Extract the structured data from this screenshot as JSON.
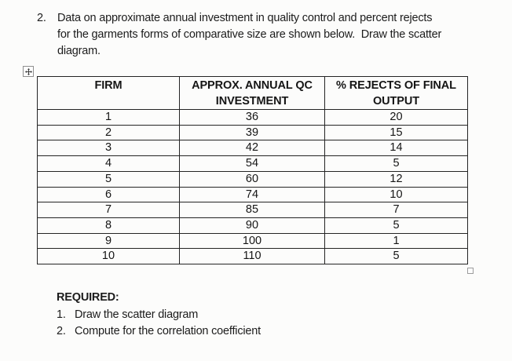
{
  "problem": {
    "number": "2.",
    "lines": [
      "Data on approximate annual investment in quality control and percent rejects",
      "for the garments forms of comparative size are shown below.  Draw the scatter",
      "diagram."
    ]
  },
  "table": {
    "headers": [
      {
        "line1": "FIRM",
        "line2": ""
      },
      {
        "line1": "APPROX. ANNUAL QC",
        "line2": "INVESTMENT"
      },
      {
        "line1": "% REJECTS OF FINAL",
        "line2": "OUTPUT"
      }
    ],
    "rows": [
      [
        "1",
        "36",
        "20"
      ],
      [
        "2",
        "39",
        "15"
      ],
      [
        "3",
        "42",
        "14"
      ],
      [
        "4",
        "54",
        "5"
      ],
      [
        "5",
        "60",
        "12"
      ],
      [
        "6",
        "74",
        "10"
      ],
      [
        "7",
        "85",
        "7"
      ],
      [
        "8",
        "90",
        "5"
      ],
      [
        "9",
        "100",
        "1"
      ],
      [
        "10",
        "110",
        "5"
      ]
    ]
  },
  "required": {
    "title": "REQUIRED:",
    "items": [
      {
        "number": "1.",
        "text": "Draw the scatter diagram"
      },
      {
        "number": "2.",
        "text": "Compute for the correlation coefficient"
      }
    ]
  },
  "icons": {
    "table_move_handle": "move-cross-icon",
    "table_resize_handle": "resize-square-icon"
  },
  "colors": {
    "page_background": "#fcfcfb",
    "text": "#1c1c1c",
    "table_border": "#242424",
    "handle_border": "#8f8f8f"
  }
}
